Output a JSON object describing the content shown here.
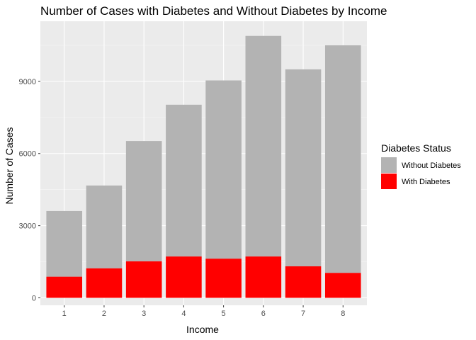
{
  "chart_data": {
    "type": "bar",
    "stacked": true,
    "title": "Number of Cases with Diabetes and Without Diabetes by Income",
    "xlabel": "Income",
    "ylabel": "Number of Cases",
    "categories": [
      "1",
      "2",
      "3",
      "4",
      "5",
      "6",
      "7",
      "8"
    ],
    "yticks": [
      0,
      3000,
      6000,
      9000
    ],
    "ylim": [
      -310,
      11500
    ],
    "grid": true,
    "legend": {
      "title": "Diabetes Status",
      "placement": "right",
      "entries": [
        "Without Diabetes",
        "With Diabetes"
      ]
    },
    "series": [
      {
        "name": "With Diabetes",
        "color": "#ff0000",
        "values": [
          880,
          1230,
          1520,
          1720,
          1630,
          1720,
          1310,
          1040
        ]
      },
      {
        "name": "Without Diabetes",
        "color": "#b3b3b3",
        "values": [
          2730,
          3440,
          5000,
          6310,
          7410,
          9170,
          8190,
          9460
        ]
      }
    ],
    "colors": {
      "panel_background": "#ebebeb",
      "grid_major": "#ffffff",
      "grid_minor": "#f5f5f5"
    }
  }
}
